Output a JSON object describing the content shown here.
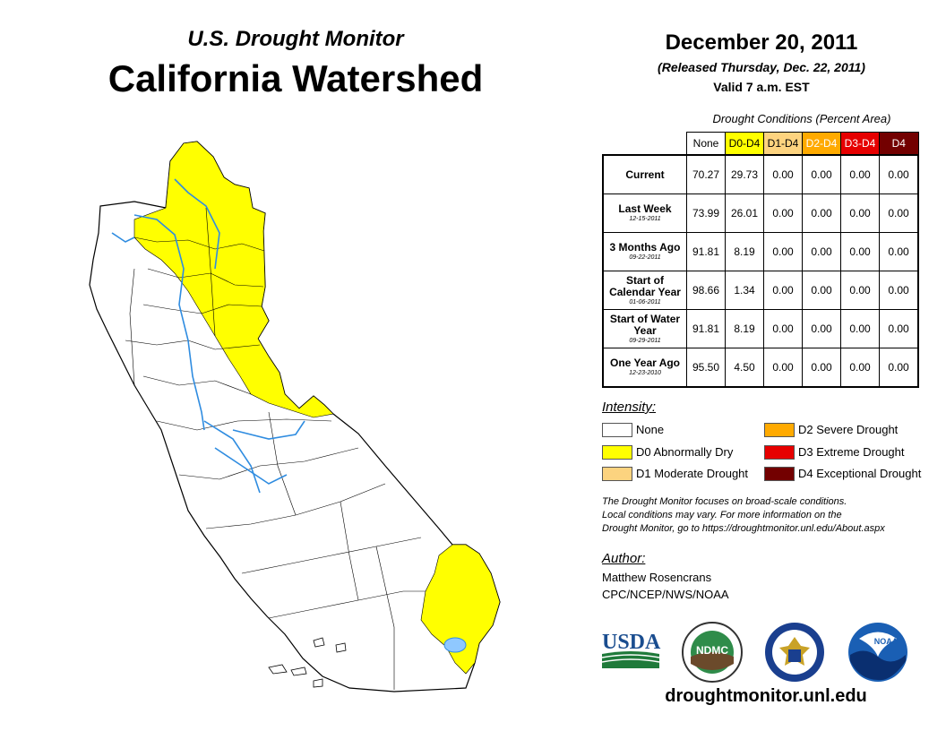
{
  "header": {
    "subtitle": "U.S. Drought Monitor",
    "title": "California Watershed",
    "date": "December 20, 2011",
    "released": "(Released Thursday, Dec. 22, 2011)",
    "valid": "Valid 7 a.m. EST"
  },
  "conditions": {
    "title": "Drought Conditions (Percent Area)",
    "columns": [
      {
        "label": "None",
        "color": "#ffffff",
        "text_color": "#000000"
      },
      {
        "label": "D0-D4",
        "color": "#ffff00",
        "text_color": "#000000"
      },
      {
        "label": "D1-D4",
        "color": "#fcd37f",
        "text_color": "#000000"
      },
      {
        "label": "D2-D4",
        "color": "#ffaa00",
        "text_color": "#ffffff"
      },
      {
        "label": "D3-D4",
        "color": "#e60000",
        "text_color": "#ffffff"
      },
      {
        "label": "D4",
        "color": "#730000",
        "text_color": "#ffffff"
      }
    ],
    "rows": [
      {
        "label": "Current",
        "sub": "",
        "values": [
          "70.27",
          "29.73",
          "0.00",
          "0.00",
          "0.00",
          "0.00"
        ]
      },
      {
        "label": "Last Week",
        "sub": "12-15-2011",
        "values": [
          "73.99",
          "26.01",
          "0.00",
          "0.00",
          "0.00",
          "0.00"
        ]
      },
      {
        "label": "3 Months Ago",
        "sub": "09-22-2011",
        "values": [
          "91.81",
          "8.19",
          "0.00",
          "0.00",
          "0.00",
          "0.00"
        ]
      },
      {
        "label": "Start of Calendar Year",
        "sub": "01-06-2011",
        "values": [
          "98.66",
          "1.34",
          "0.00",
          "0.00",
          "0.00",
          "0.00"
        ]
      },
      {
        "label": "Start of Water Year",
        "sub": "09-29-2011",
        "values": [
          "91.81",
          "8.19",
          "0.00",
          "0.00",
          "0.00",
          "0.00"
        ]
      },
      {
        "label": "One Year Ago",
        "sub": "12-23-2010",
        "values": [
          "95.50",
          "4.50",
          "0.00",
          "0.00",
          "0.00",
          "0.00"
        ]
      }
    ]
  },
  "legend": {
    "title": "Intensity:",
    "items": [
      {
        "label": "None",
        "color": "#ffffff"
      },
      {
        "label": "D0 Abnormally Dry",
        "color": "#ffff00"
      },
      {
        "label": "D1 Moderate Drought",
        "color": "#fcd37f"
      },
      {
        "label": "D2 Severe Drought",
        "color": "#ffaa00"
      },
      {
        "label": "D3 Extreme Drought",
        "color": "#e60000"
      },
      {
        "label": "D4 Exceptional Drought",
        "color": "#730000"
      }
    ]
  },
  "disclaimer": {
    "line1": "The Drought Monitor focuses on broad-scale conditions.",
    "line2": "Local conditions may vary. For more information on the",
    "line3": "Drought Monitor, go to https://droughtmonitor.unl.edu/About.aspx"
  },
  "author": {
    "title": "Author:",
    "name": "Matthew Rosencrans",
    "org": "CPC/NCEP/NWS/NOAA"
  },
  "logos": {
    "usda": "USDA",
    "ndmc": "NDMC",
    "noaa": "NOAA"
  },
  "footer": {
    "url": "droughtmonitor.unl.edu"
  },
  "map": {
    "colors": {
      "base": "#ffffff",
      "d0": "#ffff00",
      "river": "#2f8ce0",
      "border": "#000000"
    }
  }
}
